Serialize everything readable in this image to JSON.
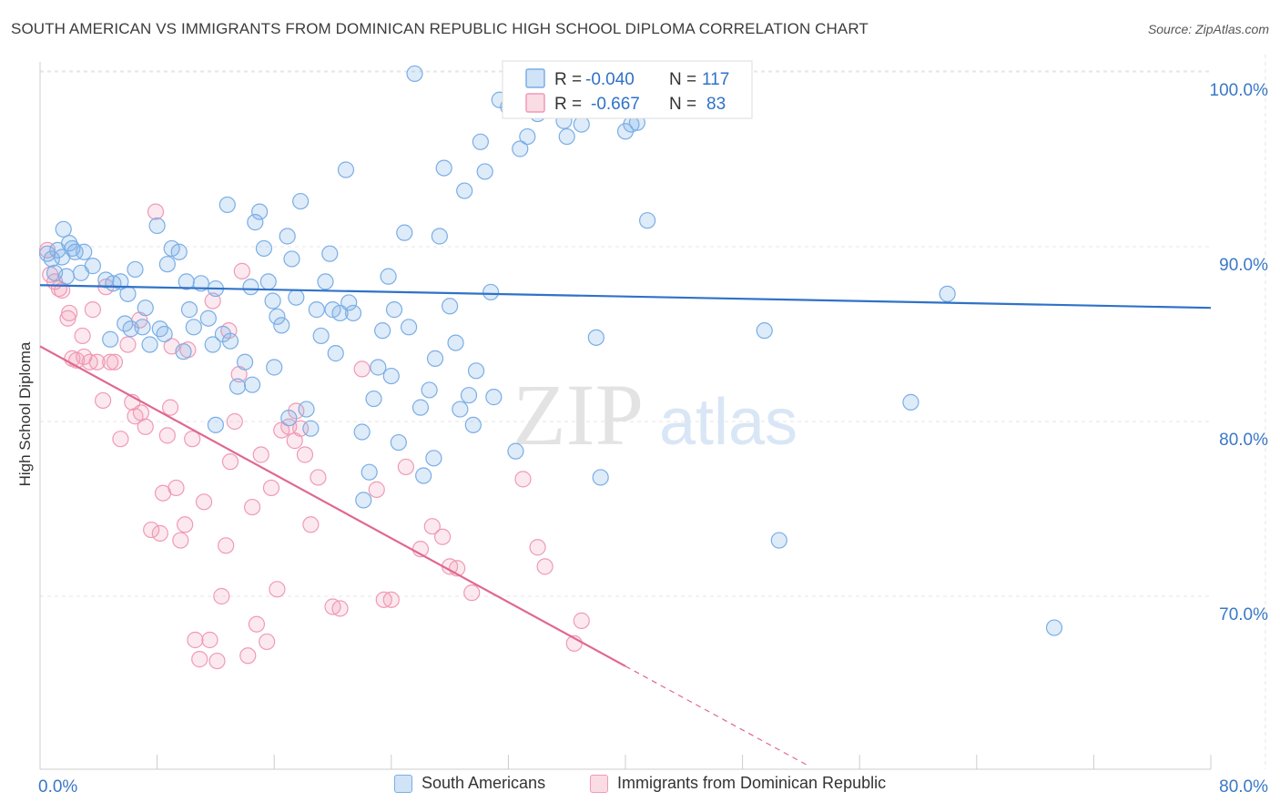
{
  "title": "SOUTH AMERICAN VS IMMIGRANTS FROM DOMINICAN REPUBLIC HIGH SCHOOL DIPLOMA CORRELATION CHART",
  "source": "Source: ZipAtlas.com",
  "watermark": {
    "zip": "ZIP",
    "atlas": "atlas"
  },
  "colors": {
    "blue": "#7aaee6",
    "blue_fill": "rgba(122,174,230,0.25)",
    "blue_line": "#2f72c8",
    "pink": "#f09ab5",
    "pink_fill": "rgba(240,154,181,0.22)",
    "pink_line": "#e0688f",
    "axis_text": "#3a78c8",
    "grid": "#e6e6e6"
  },
  "legend": {
    "rows": [
      {
        "r_label": "R =",
        "r_value": "-0.040",
        "n_label": "N =",
        "n_value": "117"
      },
      {
        "r_label": "R =",
        "r_value": "-0.667",
        "n_label": "N =",
        "n_value": "83"
      }
    ]
  },
  "bottom_legend": {
    "series1": "South Americans",
    "series2": "Immigrants from Dominican Republic"
  },
  "chart_data": {
    "type": "scatter",
    "title": "SOUTH AMERICAN VS IMMIGRANTS FROM DOMINICAN REPUBLIC HIGH SCHOOL DIPLOMA CORRELATION CHART",
    "xlabel": "",
    "ylabel": "High School Diploma",
    "xlim": [
      0,
      80
    ],
    "ylim": [
      60,
      102
    ],
    "x_tick_labels": [
      "0.0%",
      "80.0%"
    ],
    "y_tick_labels": [
      "100.0%",
      "90.0%",
      "80.0%",
      "70.0%"
    ],
    "y_ticks": [
      100,
      90,
      80,
      70
    ],
    "grid": true,
    "legend_position": "top-center",
    "series": [
      {
        "name": "South Americans",
        "r": -0.04,
        "n": 117,
        "trend": {
          "x": [
            0,
            80
          ],
          "y": [
            87.8,
            86.5
          ]
        },
        "points": [
          [
            0.5,
            89.6
          ],
          [
            0.8,
            89.3
          ],
          [
            1.0,
            88.5
          ],
          [
            1.2,
            89.8
          ],
          [
            1.5,
            89.4
          ],
          [
            1.8,
            88.3
          ],
          [
            2.0,
            90.2
          ],
          [
            2.2,
            89.9
          ],
          [
            2.4,
            89.7
          ],
          [
            3.0,
            89.7
          ],
          [
            4.5,
            88.1
          ],
          [
            5.0,
            87.9
          ],
          [
            5.5,
            88.0
          ],
          [
            6.0,
            87.3
          ],
          [
            6.5,
            88.7
          ],
          [
            4.8,
            84.7
          ],
          [
            6.2,
            85.3
          ],
          [
            7.0,
            85.4
          ],
          [
            7.5,
            84.4
          ],
          [
            8.0,
            91.2
          ],
          [
            8.2,
            85.3
          ],
          [
            8.7,
            89.0
          ],
          [
            8.5,
            85.0
          ],
          [
            9.0,
            89.9
          ],
          [
            9.5,
            89.7
          ],
          [
            10.0,
            88.0
          ],
          [
            10.2,
            86.4
          ],
          [
            10.5,
            85.4
          ],
          [
            11.0,
            87.9
          ],
          [
            11.5,
            85.9
          ],
          [
            11.8,
            84.4
          ],
          [
            12.0,
            87.6
          ],
          [
            12.5,
            85.0
          ],
          [
            12.0,
            79.8
          ],
          [
            12.8,
            92.4
          ],
          [
            13.5,
            82.0
          ],
          [
            14.0,
            83.4
          ],
          [
            14.4,
            87.7
          ],
          [
            14.7,
            91.4
          ],
          [
            15.0,
            92.0
          ],
          [
            15.3,
            89.9
          ],
          [
            15.6,
            88.0
          ],
          [
            15.9,
            86.9
          ],
          [
            16.2,
            86.0
          ],
          [
            16.5,
            85.5
          ],
          [
            16.9,
            90.6
          ],
          [
            17.2,
            89.3
          ],
          [
            17.5,
            87.1
          ],
          [
            17.8,
            92.6
          ],
          [
            18.2,
            80.7
          ],
          [
            18.5,
            79.6
          ],
          [
            18.9,
            86.4
          ],
          [
            19.2,
            84.9
          ],
          [
            19.5,
            88.0
          ],
          [
            19.8,
            89.6
          ],
          [
            20.2,
            83.9
          ],
          [
            20.5,
            86.2
          ],
          [
            20.9,
            94.4
          ],
          [
            21.1,
            86.8
          ],
          [
            21.4,
            86.2
          ],
          [
            22.1,
            75.5
          ],
          [
            22.5,
            77.1
          ],
          [
            22.8,
            81.3
          ],
          [
            23.1,
            83.1
          ],
          [
            23.4,
            85.2
          ],
          [
            23.8,
            88.3
          ],
          [
            24.2,
            86.4
          ],
          [
            24.5,
            78.8
          ],
          [
            24.9,
            90.8
          ],
          [
            25.2,
            85.4
          ],
          [
            25.6,
            99.9
          ],
          [
            26.2,
            76.9
          ],
          [
            26.6,
            81.8
          ],
          [
            26.9,
            77.9
          ],
          [
            27.3,
            90.6
          ],
          [
            27.6,
            94.5
          ],
          [
            28.0,
            86.6
          ],
          [
            28.4,
            84.5
          ],
          [
            28.7,
            80.7
          ],
          [
            29.0,
            93.2
          ],
          [
            29.3,
            81.5
          ],
          [
            29.6,
            79.8
          ],
          [
            30.1,
            96.0
          ],
          [
            30.4,
            94.3
          ],
          [
            30.8,
            87.4
          ],
          [
            31.0,
            81.4
          ],
          [
            31.4,
            98.4
          ],
          [
            32.0,
            98.0
          ],
          [
            32.5,
            78.3
          ],
          [
            32.8,
            95.6
          ],
          [
            33.3,
            96.3
          ],
          [
            34.0,
            97.6
          ],
          [
            34.5,
            99.8
          ],
          [
            35.0,
            99.2
          ],
          [
            35.3,
            99.1
          ],
          [
            35.8,
            97.2
          ],
          [
            36.0,
            96.3
          ],
          [
            37.0,
            97.0
          ],
          [
            38.0,
            84.8
          ],
          [
            38.3,
            76.8
          ],
          [
            38.6,
            98.0
          ],
          [
            39.0,
            99.7
          ],
          [
            40.0,
            96.6
          ],
          [
            40.4,
            97.0
          ],
          [
            40.8,
            97.1
          ],
          [
            41.5,
            91.5
          ],
          [
            49.5,
            85.2
          ],
          [
            50.5,
            73.2
          ],
          [
            59.5,
            81.1
          ],
          [
            62.0,
            87.3
          ],
          [
            69.3,
            68.2
          ],
          [
            2.8,
            88.5
          ],
          [
            5.8,
            85.6
          ],
          [
            9.8,
            84.0
          ],
          [
            13.0,
            84.6
          ],
          [
            16.0,
            83.1
          ],
          [
            20.0,
            86.4
          ],
          [
            24.0,
            82.6
          ],
          [
            27.0,
            83.6
          ],
          [
            14.5,
            82.1
          ],
          [
            17.0,
            80.2
          ],
          [
            22.0,
            79.4
          ],
          [
            26.0,
            80.8
          ],
          [
            29.8,
            82.9
          ],
          [
            1.6,
            91.0
          ],
          [
            3.6,
            88.9
          ],
          [
            7.2,
            86.5
          ]
        ]
      },
      {
        "name": "Immigrants from Dominican Republic",
        "r": -0.667,
        "n": 83,
        "trend": {
          "x": [
            0,
            40
          ],
          "y": [
            84.3,
            66.0
          ]
        },
        "trend_dashed": {
          "x": [
            40,
            52.5
          ],
          "y": [
            66.0,
            60.3
          ]
        },
        "points": [
          [
            0.5,
            89.8
          ],
          [
            0.7,
            88.4
          ],
          [
            1.0,
            88.0
          ],
          [
            1.3,
            87.6
          ],
          [
            1.5,
            87.5
          ],
          [
            1.9,
            85.9
          ],
          [
            2.0,
            86.2
          ],
          [
            2.2,
            83.6
          ],
          [
            2.5,
            83.5
          ],
          [
            2.9,
            84.9
          ],
          [
            3.0,
            83.7
          ],
          [
            3.4,
            83.4
          ],
          [
            3.6,
            86.4
          ],
          [
            3.9,
            83.4
          ],
          [
            4.3,
            81.2
          ],
          [
            4.5,
            87.7
          ],
          [
            4.8,
            83.4
          ],
          [
            5.1,
            83.4
          ],
          [
            5.5,
            79.0
          ],
          [
            6.0,
            84.4
          ],
          [
            6.3,
            81.1
          ],
          [
            6.5,
            80.3
          ],
          [
            6.9,
            80.5
          ],
          [
            7.2,
            79.7
          ],
          [
            7.6,
            73.8
          ],
          [
            7.9,
            92.0
          ],
          [
            8.2,
            73.6
          ],
          [
            8.4,
            75.9
          ],
          [
            8.7,
            79.2
          ],
          [
            8.9,
            80.8
          ],
          [
            9.3,
            76.2
          ],
          [
            9.6,
            73.2
          ],
          [
            9.9,
            74.1
          ],
          [
            10.1,
            84.1
          ],
          [
            10.4,
            79.0
          ],
          [
            10.6,
            67.5
          ],
          [
            10.9,
            66.4
          ],
          [
            11.2,
            75.4
          ],
          [
            11.6,
            67.5
          ],
          [
            11.8,
            86.9
          ],
          [
            12.1,
            66.3
          ],
          [
            12.4,
            70.0
          ],
          [
            12.7,
            72.9
          ],
          [
            13.0,
            77.7
          ],
          [
            13.3,
            80.0
          ],
          [
            13.6,
            82.7
          ],
          [
            14.2,
            66.6
          ],
          [
            14.5,
            75.1
          ],
          [
            14.8,
            68.4
          ],
          [
            15.1,
            78.1
          ],
          [
            15.5,
            67.4
          ],
          [
            15.8,
            76.2
          ],
          [
            16.2,
            70.4
          ],
          [
            16.5,
            79.5
          ],
          [
            17.0,
            79.7
          ],
          [
            17.4,
            78.9
          ],
          [
            17.8,
            79.6
          ],
          [
            18.1,
            78.1
          ],
          [
            18.5,
            74.1
          ],
          [
            19.0,
            76.8
          ],
          [
            20.0,
            69.4
          ],
          [
            20.5,
            69.3
          ],
          [
            22.0,
            83.0
          ],
          [
            23.0,
            76.1
          ],
          [
            23.5,
            69.8
          ],
          [
            24.0,
            69.8
          ],
          [
            25.0,
            77.4
          ],
          [
            26.0,
            72.7
          ],
          [
            26.8,
            74.0
          ],
          [
            27.5,
            73.4
          ],
          [
            28.0,
            71.7
          ],
          [
            28.5,
            71.6
          ],
          [
            29.5,
            70.2
          ],
          [
            33.0,
            76.7
          ],
          [
            34.0,
            72.8
          ],
          [
            34.5,
            71.7
          ],
          [
            36.5,
            67.3
          ],
          [
            37.0,
            68.6
          ],
          [
            13.8,
            88.6
          ],
          [
            6.8,
            85.8
          ],
          [
            9.0,
            84.3
          ],
          [
            12.9,
            85.2
          ],
          [
            17.5,
            80.6
          ]
        ]
      }
    ]
  }
}
